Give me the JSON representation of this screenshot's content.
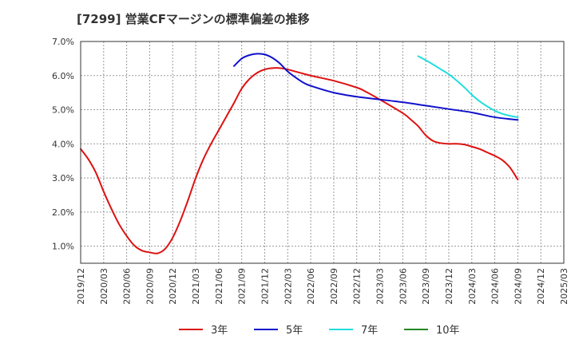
{
  "chart_data": {
    "type": "line",
    "title": "[7299]  営業CFマージンの標準偏差の推移",
    "xlabel": "",
    "ylabel": "",
    "ylim": [
      0.5,
      7.0
    ],
    "yticks": [
      1.0,
      2.0,
      3.0,
      4.0,
      5.0,
      6.0,
      7.0
    ],
    "ytick_labels": [
      "1.0%",
      "2.0%",
      "3.0%",
      "4.0%",
      "5.0%",
      "6.0%",
      "7.0%"
    ],
    "xlim": [
      "2019-12",
      "2025-03"
    ],
    "x_tick_labels": [
      "2019/12",
      "2020/03",
      "2020/06",
      "2020/09",
      "2020/12",
      "2021/03",
      "2021/06",
      "2021/09",
      "2021/12",
      "2022/03",
      "2022/06",
      "2022/09",
      "2022/12",
      "2023/03",
      "2023/06",
      "2023/09",
      "2023/12",
      "2024/03",
      "2024/06",
      "2024/09",
      "2024/12",
      "2025/03"
    ],
    "grid": true,
    "legend_position": "bottom",
    "series": [
      {
        "name": "3年",
        "color": "#dd1111",
        "x": [
          "2019-12",
          "2020-01",
          "2020-02",
          "2020-03",
          "2020-04",
          "2020-05",
          "2020-06",
          "2020-07",
          "2020-08",
          "2020-09",
          "2020-10",
          "2020-11",
          "2020-12",
          "2021-01",
          "2021-02",
          "2021-03",
          "2021-04",
          "2021-05",
          "2021-06",
          "2021-07",
          "2021-08",
          "2021-09",
          "2021-10",
          "2021-11",
          "2021-12",
          "2022-01",
          "2022-02",
          "2022-03",
          "2022-06",
          "2022-09",
          "2022-12",
          "2023-01",
          "2023-03",
          "2023-06",
          "2023-07",
          "2023-08",
          "2023-09",
          "2023-10",
          "2023-11",
          "2023-12",
          "2024-01",
          "2024-02",
          "2024-03",
          "2024-04",
          "2024-05",
          "2024-06",
          "2024-07",
          "2024-08",
          "2024-09"
        ],
        "values": [
          3.85,
          3.55,
          3.15,
          2.6,
          2.1,
          1.65,
          1.3,
          1.02,
          0.87,
          0.82,
          0.79,
          0.92,
          1.25,
          1.75,
          2.35,
          3.0,
          3.55,
          4.0,
          4.4,
          4.8,
          5.2,
          5.62,
          5.9,
          6.08,
          6.18,
          6.22,
          6.22,
          6.18,
          6.0,
          5.85,
          5.65,
          5.55,
          5.3,
          4.9,
          4.72,
          4.52,
          4.25,
          4.08,
          4.02,
          4.0,
          4.0,
          3.98,
          3.92,
          3.85,
          3.75,
          3.65,
          3.52,
          3.3,
          2.95
        ]
      },
      {
        "name": "5年",
        "color": "#1111cc",
        "x": [
          "2021-08",
          "2021-09",
          "2021-10",
          "2021-11",
          "2021-12",
          "2022-01",
          "2022-02",
          "2022-03",
          "2022-04",
          "2022-05",
          "2022-06",
          "2022-09",
          "2022-12",
          "2023-03",
          "2023-06",
          "2023-09",
          "2023-12",
          "2024-03",
          "2024-06",
          "2024-09"
        ],
        "values": [
          6.28,
          6.5,
          6.6,
          6.64,
          6.62,
          6.52,
          6.35,
          6.12,
          5.95,
          5.8,
          5.7,
          5.5,
          5.38,
          5.3,
          5.22,
          5.12,
          5.02,
          4.92,
          4.78,
          4.7
        ]
      },
      {
        "name": "7年",
        "color": "#22dddd",
        "x": [
          "2023-08",
          "2023-09",
          "2023-10",
          "2023-11",
          "2023-12",
          "2024-01",
          "2024-02",
          "2024-03",
          "2024-04",
          "2024-05",
          "2024-06",
          "2024-07",
          "2024-08",
          "2024-09"
        ],
        "values": [
          6.57,
          6.45,
          6.32,
          6.18,
          6.04,
          5.86,
          5.66,
          5.44,
          5.25,
          5.1,
          4.97,
          4.88,
          4.82,
          4.78
        ]
      },
      {
        "name": "10年",
        "color": "#228822",
        "x": [],
        "values": []
      }
    ]
  }
}
